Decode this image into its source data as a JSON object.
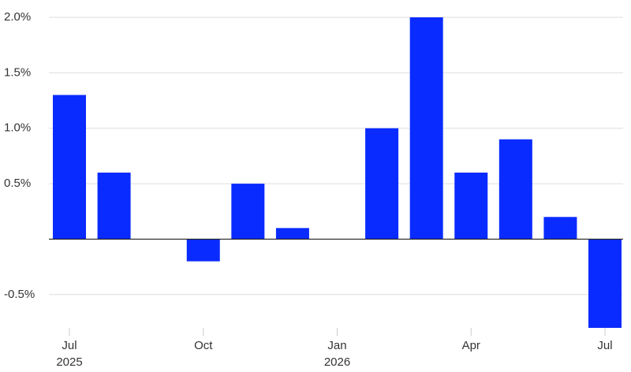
{
  "chart_data": {
    "type": "bar",
    "categories": [
      "Jul",
      null,
      null,
      "Oct",
      null,
      null,
      "Jan",
      null,
      null,
      "Apr",
      null,
      null,
      "Jul"
    ],
    "category_years": [
      "2025",
      null,
      null,
      null,
      null,
      null,
      "2026",
      null,
      null,
      null,
      null,
      null,
      null
    ],
    "values": [
      1.3,
      0.6,
      0,
      -0.2,
      0.5,
      0.1,
      0,
      1.0,
      2.0,
      0.6,
      0.9,
      0.2,
      -0.8
    ],
    "color": "#0a2bff",
    "ylim": [
      -0.8,
      2.0
    ],
    "yticks": [
      {
        "value": -0.5,
        "label": "-0.5%"
      },
      {
        "value": 0.5,
        "label": "0.5%"
      },
      {
        "value": 1.0,
        "label": "1.0%"
      },
      {
        "value": 1.5,
        "label": "1.5%"
      },
      {
        "value": 2.0,
        "label": "2.0%"
      }
    ],
    "grid": true
  }
}
